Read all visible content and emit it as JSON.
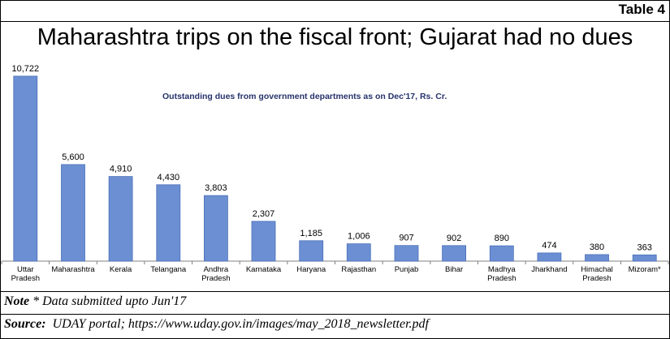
{
  "tag": "Table 4",
  "title": "Maharashtra trips on the fiscal front; Gujarat  had no dues",
  "note_label": "Note",
  "note_text": " * Data submitted upto Jun'17",
  "source_label": "Source:",
  "source_text": "  UDAY portal; https://www.uday.gov.in/images/may_2018_newsletter.pdf",
  "colors": {
    "bar": "#6b8fd2",
    "bar_edge": "#4a6fb8",
    "text": "#000000",
    "subtitle": "#26326b"
  },
  "chart_data": {
    "type": "bar",
    "title": "Outstanding dues from government departments as on Dec'17, Rs. Cr.",
    "xlabel": "",
    "ylabel": "",
    "ylim": [
      0,
      11000
    ],
    "grid": false,
    "categories": [
      [
        "Uttar",
        "Pradesh"
      ],
      [
        "Maharashtra"
      ],
      [
        "Kerala"
      ],
      [
        "Telangana"
      ],
      [
        "Andhra",
        "Pradesh"
      ],
      [
        "Karnataka"
      ],
      [
        "Haryana"
      ],
      [
        "Rajasthan"
      ],
      [
        "Punjab"
      ],
      [
        "Bihar"
      ],
      [
        "Madhya",
        "Pradesh"
      ],
      [
        "Jharkhand"
      ],
      [
        "Himachal",
        "Pradesh"
      ],
      [
        "Mizoram*"
      ]
    ],
    "values": [
      10722,
      5600,
      4910,
      4430,
      3803,
      2307,
      1185,
      1006,
      907,
      902,
      890,
      474,
      380,
      363
    ],
    "value_labels": [
      "10,722",
      "5,600",
      "4,910",
      "4,430",
      "3,803",
      "2,307",
      "1,185",
      "1,006",
      "907",
      "902",
      "890",
      "474",
      "380",
      "363"
    ]
  }
}
